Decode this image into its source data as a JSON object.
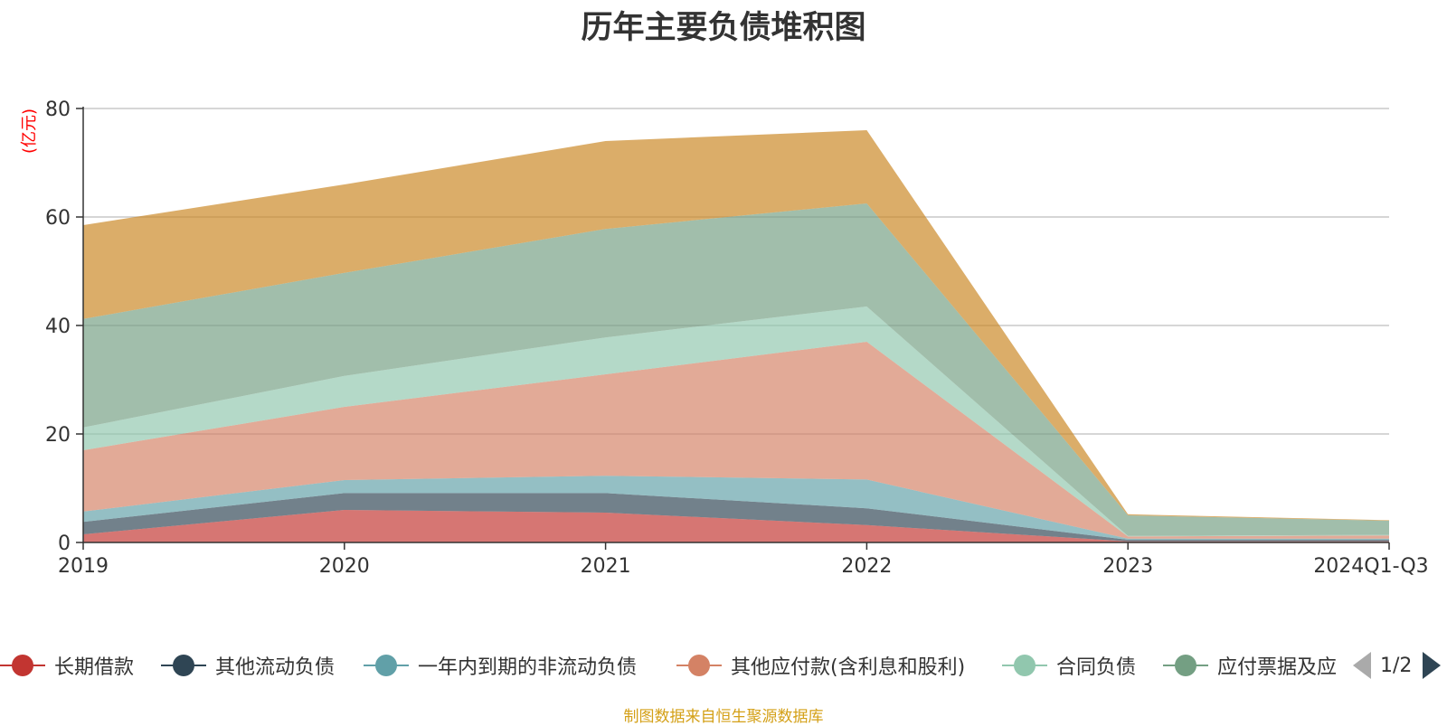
{
  "chart_data": {
    "type": "area",
    "stacked": true,
    "title": "历年主要负债堆积图",
    "ylabel": "(亿元)",
    "ylim": [
      0,
      80
    ],
    "yticks": [
      0,
      20,
      40,
      60,
      80
    ],
    "categories": [
      "2019",
      "2020",
      "2021",
      "2022",
      "2023",
      "2024Q1-Q3"
    ],
    "series": [
      {
        "name": "长期借款",
        "color": "#c23531",
        "values": [
          1.5,
          6,
          5.5,
          3.2,
          0.2,
          0.2
        ]
      },
      {
        "name": "其他流动负债",
        "color": "#2f4554",
        "values": [
          2.3,
          3.1,
          3.6,
          3.1,
          0.3,
          0.3
        ]
      },
      {
        "name": "一年内到期的非流动负债",
        "color": "#61a0a8",
        "values": [
          1.9,
          2.4,
          3.2,
          5.3,
          0.2,
          0.2
        ]
      },
      {
        "name": "其他应付款(含利息和股利)",
        "color": "#d48265",
        "values": [
          11.3,
          13.5,
          18.7,
          25.4,
          0.4,
          0.6
        ]
      },
      {
        "name": "合同负债",
        "color": "#91c7ae",
        "values": [
          4.2,
          5.7,
          6.8,
          6.5,
          0.1,
          0.1
        ]
      },
      {
        "name": "应付票据及应付账款",
        "color": "#749f83",
        "values": [
          20.0,
          19.0,
          20.0,
          19.0,
          3.8,
          2.6
        ]
      },
      {
        "name": "",
        "color": "#ca8622",
        "values": [
          17.3,
          16.3,
          16.2,
          13.5,
          0.2,
          0.1
        ]
      }
    ],
    "grid": true
  },
  "legend": {
    "visible_items": [
      {
        "label": "长期借款",
        "color": "#c23531"
      },
      {
        "label": "其他流动负债",
        "color": "#2f4554"
      },
      {
        "label": "一年内到期的非流动负债",
        "color": "#61a0a8"
      },
      {
        "label": "其他应付款(含利息和股利)",
        "color": "#d48265"
      },
      {
        "label": "合同负债",
        "color": "#91c7ae"
      },
      {
        "label": "应付票据及应",
        "color": "#749f83"
      }
    ],
    "page": "1/2"
  },
  "source_note": "制图数据来自恒生聚源数据库"
}
